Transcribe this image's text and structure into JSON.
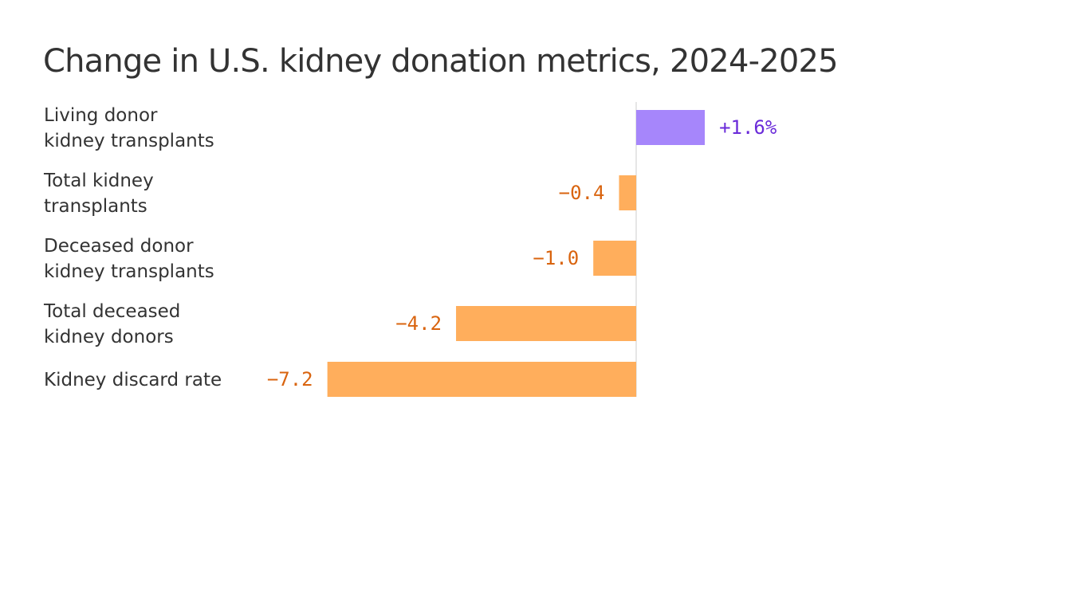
{
  "chart_data": {
    "type": "bar",
    "orientation": "horizontal",
    "title": "Change in U.S. kidney donation metrics, 2024-2025",
    "categories": [
      [
        "Living donor",
        "kidney transplants"
      ],
      [
        "Total kidney",
        "transplants"
      ],
      [
        "Deceased donor",
        "kidney transplants"
      ],
      [
        "Total deceased",
        "kidney donors"
      ],
      [
        "Kidney discard rate"
      ]
    ],
    "values": [
      1.6,
      -0.4,
      -1.0,
      -4.2,
      -7.2
    ],
    "value_labels": [
      "+1.6%",
      "−0.4",
      "−1.0",
      "−4.2",
      "−7.2"
    ],
    "unit": "%",
    "xlim": [
      -7.2,
      1.6
    ],
    "grid": false,
    "legend": "none",
    "colors": {
      "positive_bar": "#a686fb",
      "negative_bar": "#ffae5c",
      "positive_label": "#6a2bd9",
      "negative_label": "#d9640f",
      "zero_line": "#dddddd",
      "text": "#333333"
    }
  }
}
